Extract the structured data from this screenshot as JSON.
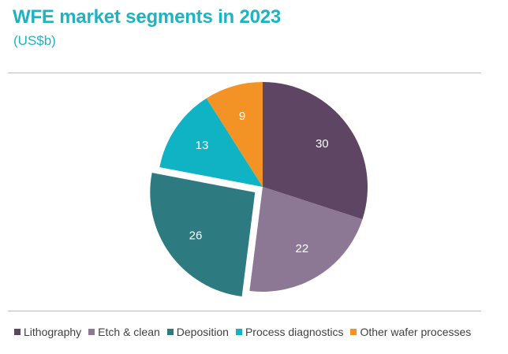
{
  "chart_data": {
    "type": "pie",
    "title": "WFE market segments in 2023",
    "subtitle": "(US$b)",
    "categories": [
      "Lithography",
      "Etch & clean",
      "Deposition",
      "Process diagnostics",
      "Other wafer processes"
    ],
    "values": [
      30,
      22,
      26,
      13,
      9
    ],
    "colors": [
      "#5e4563",
      "#8c7894",
      "#2e7a81",
      "#0fb3c4",
      "#f39325"
    ],
    "exploded": "Deposition",
    "start_angle_deg": 0,
    "direction": "clockwise",
    "legend_position": "bottom",
    "data_label_color": "#ffffff"
  }
}
